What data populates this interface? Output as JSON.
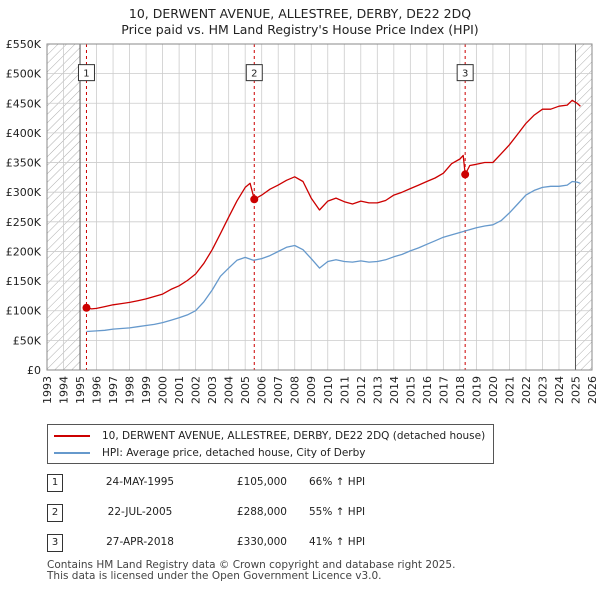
{
  "title_line1": "10, DERWENT AVENUE, ALLESTREE, DERBY, DE22 2DQ",
  "title_line2": "Price paid vs. HM Land Registry's House Price Index (HPI)",
  "colors": {
    "property": "#cc0000",
    "hpi": "#6699cc",
    "grid": "#cccccc",
    "hatch": "#999999",
    "marker": "#cc0000",
    "vline": "#cc0000"
  },
  "chart_data": {
    "type": "line",
    "title": "Price paid vs. HM Land Registry's House Price Index (HPI)",
    "xlabel": "",
    "ylabel": "",
    "xlim": [
      1993,
      2026
    ],
    "ylim": [
      0,
      550000
    ],
    "x_ticks": [
      "1993",
      "1994",
      "1995",
      "1996",
      "1997",
      "1998",
      "1999",
      "2000",
      "2001",
      "2002",
      "2003",
      "2004",
      "2005",
      "2006",
      "2007",
      "2008",
      "2009",
      "2010",
      "2011",
      "2012",
      "2013",
      "2014",
      "2015",
      "2016",
      "2017",
      "2018",
      "2019",
      "2020",
      "2021",
      "2022",
      "2023",
      "2024",
      "2025",
      "2026"
    ],
    "y_ticks": [
      {
        "value": 0,
        "label": "£0"
      },
      {
        "value": 50000,
        "label": "£50K"
      },
      {
        "value": 100000,
        "label": "£100K"
      },
      {
        "value": 150000,
        "label": "£150K"
      },
      {
        "value": 200000,
        "label": "£200K"
      },
      {
        "value": 250000,
        "label": "£250K"
      },
      {
        "value": 300000,
        "label": "£300K"
      },
      {
        "value": 350000,
        "label": "£350K"
      },
      {
        "value": 400000,
        "label": "£400K"
      },
      {
        "value": 450000,
        "label": "£450K"
      },
      {
        "value": 500000,
        "label": "£500K"
      },
      {
        "value": 550000,
        "label": "£550K"
      }
    ],
    "hatched_ranges": [
      [
        1993,
        1995.0
      ],
      [
        2025.0,
        2026
      ]
    ],
    "series": [
      {
        "name": "10, DERWENT AVENUE, ALLESTREE, DERBY, DE22 2DQ (detached house)",
        "points": [
          [
            1995.39,
            105000
          ],
          [
            1995.7,
            103000
          ],
          [
            1996,
            104000
          ],
          [
            1996.5,
            107000
          ],
          [
            1997,
            110000
          ],
          [
            1997.5,
            112000
          ],
          [
            1998,
            114000
          ],
          [
            1998.5,
            117000
          ],
          [
            1999,
            120000
          ],
          [
            1999.5,
            124000
          ],
          [
            2000,
            128000
          ],
          [
            2000.5,
            136000
          ],
          [
            2001,
            142000
          ],
          [
            2001.5,
            151000
          ],
          [
            2002,
            162000
          ],
          [
            2002.5,
            180000
          ],
          [
            2003,
            203000
          ],
          [
            2003.5,
            230000
          ],
          [
            2004,
            258000
          ],
          [
            2004.5,
            285000
          ],
          [
            2005,
            308000
          ],
          [
            2005.3,
            315000
          ],
          [
            2005.55,
            288000
          ],
          [
            2006,
            295000
          ],
          [
            2006.5,
            305000
          ],
          [
            2007,
            312000
          ],
          [
            2007.5,
            320000
          ],
          [
            2008,
            326000
          ],
          [
            2008.5,
            318000
          ],
          [
            2009,
            290000
          ],
          [
            2009.5,
            270000
          ],
          [
            2010,
            285000
          ],
          [
            2010.5,
            290000
          ],
          [
            2011,
            284000
          ],
          [
            2011.5,
            280000
          ],
          [
            2012,
            285000
          ],
          [
            2012.5,
            282000
          ],
          [
            2013,
            282000
          ],
          [
            2013.5,
            286000
          ],
          [
            2014,
            295000
          ],
          [
            2014.5,
            300000
          ],
          [
            2015,
            306000
          ],
          [
            2015.5,
            312000
          ],
          [
            2016,
            318000
          ],
          [
            2016.5,
            324000
          ],
          [
            2017,
            332000
          ],
          [
            2017.5,
            348000
          ],
          [
            2018,
            356000
          ],
          [
            2018.2,
            362000
          ],
          [
            2018.32,
            330000
          ],
          [
            2018.6,
            345000
          ],
          [
            2019,
            347000
          ],
          [
            2019.5,
            350000
          ],
          [
            2020,
            350000
          ],
          [
            2020.5,
            365000
          ],
          [
            2021,
            380000
          ],
          [
            2021.5,
            398000
          ],
          [
            2022,
            416000
          ],
          [
            2022.5,
            430000
          ],
          [
            2023,
            440000
          ],
          [
            2023.5,
            440000
          ],
          [
            2024,
            445000
          ],
          [
            2024.5,
            447000
          ],
          [
            2024.8,
            455000
          ],
          [
            2025.1,
            450000
          ],
          [
            2025.3,
            445000
          ]
        ]
      },
      {
        "name": "HPI: Average price, detached house, City of Derby",
        "points": [
          [
            1995.39,
            65000
          ],
          [
            1996,
            66000
          ],
          [
            1996.5,
            67000
          ],
          [
            1997,
            69000
          ],
          [
            1997.5,
            70000
          ],
          [
            1998,
            71000
          ],
          [
            1998.5,
            73000
          ],
          [
            1999,
            75000
          ],
          [
            1999.5,
            77000
          ],
          [
            2000,
            80000
          ],
          [
            2000.5,
            84000
          ],
          [
            2001,
            88000
          ],
          [
            2001.5,
            93000
          ],
          [
            2002,
            100000
          ],
          [
            2002.5,
            115000
          ],
          [
            2003,
            135000
          ],
          [
            2003.5,
            158000
          ],
          [
            2004,
            172000
          ],
          [
            2004.5,
            185000
          ],
          [
            2005,
            190000
          ],
          [
            2005.5,
            185000
          ],
          [
            2006,
            188000
          ],
          [
            2006.5,
            193000
          ],
          [
            2007,
            200000
          ],
          [
            2007.5,
            207000
          ],
          [
            2008,
            210000
          ],
          [
            2008.5,
            203000
          ],
          [
            2009,
            188000
          ],
          [
            2009.5,
            172000
          ],
          [
            2010,
            183000
          ],
          [
            2010.5,
            186000
          ],
          [
            2011,
            183000
          ],
          [
            2011.5,
            182000
          ],
          [
            2012,
            184000
          ],
          [
            2012.5,
            182000
          ],
          [
            2013,
            183000
          ],
          [
            2013.5,
            186000
          ],
          [
            2014,
            191000
          ],
          [
            2014.5,
            195000
          ],
          [
            2015,
            201000
          ],
          [
            2015.5,
            206000
          ],
          [
            2016,
            212000
          ],
          [
            2016.5,
            218000
          ],
          [
            2017,
            224000
          ],
          [
            2017.5,
            228000
          ],
          [
            2018,
            232000
          ],
          [
            2018.5,
            236000
          ],
          [
            2019,
            240000
          ],
          [
            2019.5,
            243000
          ],
          [
            2020,
            245000
          ],
          [
            2020.5,
            252000
          ],
          [
            2021,
            265000
          ],
          [
            2021.5,
            280000
          ],
          [
            2022,
            295000
          ],
          [
            2022.5,
            303000
          ],
          [
            2023,
            308000
          ],
          [
            2023.5,
            310000
          ],
          [
            2024,
            310000
          ],
          [
            2024.5,
            312000
          ],
          [
            2024.8,
            318000
          ],
          [
            2025.1,
            317000
          ],
          [
            2025.3,
            315000
          ]
        ]
      }
    ],
    "sale_markers": [
      {
        "label": "1",
        "x": 1995.39,
        "y": 105000
      },
      {
        "label": "2",
        "x": 2005.55,
        "y": 288000
      },
      {
        "label": "3",
        "x": 2018.32,
        "y": 330000
      }
    ]
  },
  "legend": {
    "property_label": "10, DERWENT AVENUE, ALLESTREE, DERBY, DE22 2DQ (detached house)",
    "hpi_label": "HPI: Average price, detached house, City of Derby"
  },
  "sales": [
    {
      "num": "1",
      "date": "24-MAY-1995",
      "price": "£105,000",
      "hpi": "66% ↑ HPI"
    },
    {
      "num": "2",
      "date": "22-JUL-2005",
      "price": "£288,000",
      "hpi": "55% ↑ HPI"
    },
    {
      "num": "3",
      "date": "27-APR-2018",
      "price": "£330,000",
      "hpi": "41% ↑ HPI"
    }
  ],
  "footer": {
    "line1": "Contains HM Land Registry data © Crown copyright and database right 2025.",
    "line2": "This data is licensed under the Open Government Licence v3.0."
  }
}
